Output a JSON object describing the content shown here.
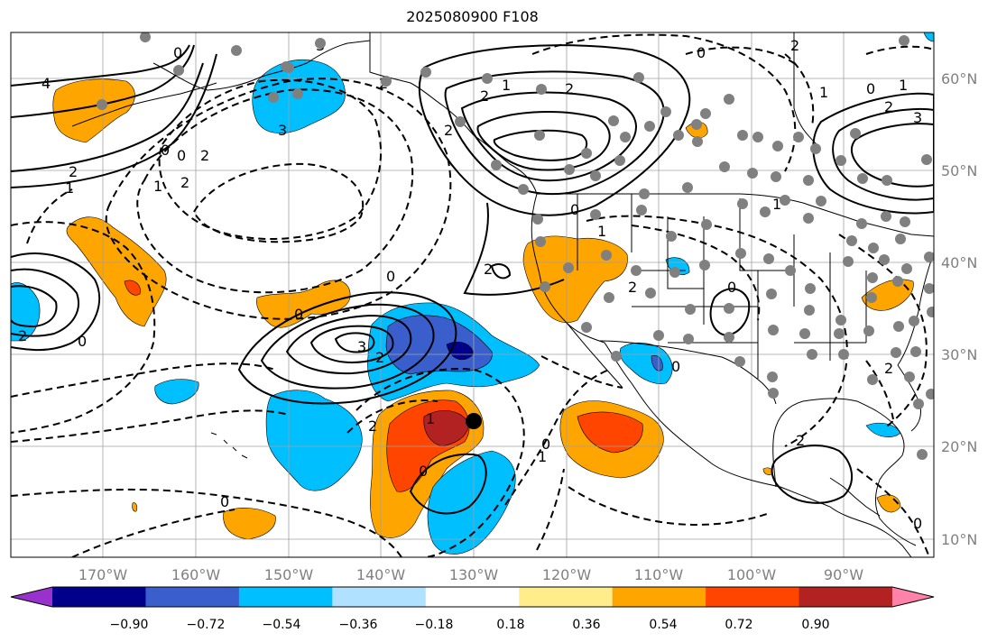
{
  "title": "2025080900 F108",
  "lat_labels": [
    "60°N",
    "50°N",
    "40°N",
    "30°N",
    "20°N",
    "10°N"
  ],
  "lon_labels": [
    "170°W",
    "160°W",
    "150°W",
    "140°W",
    "130°W",
    "120°W",
    "110°W",
    "100°W",
    "90°W"
  ],
  "colorbar": {
    "ticks": [
      "−0.90",
      "−0.72",
      "−0.54",
      "−0.36",
      "−0.18",
      "0.18",
      "0.36",
      "0.54",
      "0.72",
      "0.90"
    ],
    "colors": [
      "#9932CC",
      "#00008B",
      "#3A5FCD",
      "#00BFFF",
      "#B0E2FF",
      "#FFFFFF",
      "#FFEC8B",
      "#FFA500",
      "#FF4500",
      "#B22222",
      "#FF82AB"
    ]
  },
  "contour_labels": [
    "4",
    "2",
    "1",
    "0",
    "0",
    "2",
    "1",
    "0",
    "3",
    "2",
    "2",
    "3",
    "0",
    "0",
    "2",
    "1",
    "0",
    "3",
    "2",
    "1",
    "2",
    "2",
    "1",
    "0",
    "2",
    "1",
    "2",
    "0",
    "0",
    "2",
    "0",
    "1",
    "0",
    "2",
    "1",
    "2",
    "0",
    "1",
    "2",
    "3",
    "0",
    "2",
    "2",
    "0",
    "0"
  ],
  "marker_colors": {
    "station": "#808080",
    "target": "#000000"
  }
}
